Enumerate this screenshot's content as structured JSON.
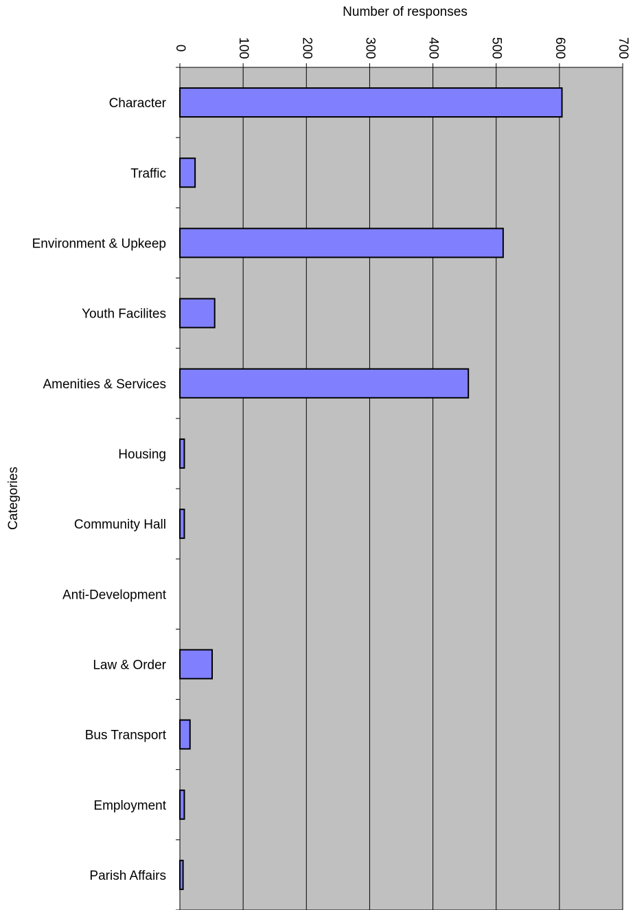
{
  "chart_data": {
    "type": "hbar",
    "xlabel": "Number of responses",
    "ylabel": "Categories",
    "categories": [
      "Character",
      "Traffic",
      "Environment & Upkeep",
      "Youth Facilites",
      "Amenities & Services",
      "Housing",
      "Community Hall",
      "Anti-Development",
      "Law & Order",
      "Bus Transport",
      "Employment",
      "Parish Affairs"
    ],
    "values": [
      604,
      24,
      511,
      55,
      456,
      7,
      7,
      0,
      51,
      16,
      7,
      5
    ],
    "color": "#8080ff",
    "xlim": [
      0,
      700
    ],
    "xticks": [
      0,
      100,
      200,
      300,
      400,
      500,
      600,
      700
    ],
    "grid": true
  }
}
